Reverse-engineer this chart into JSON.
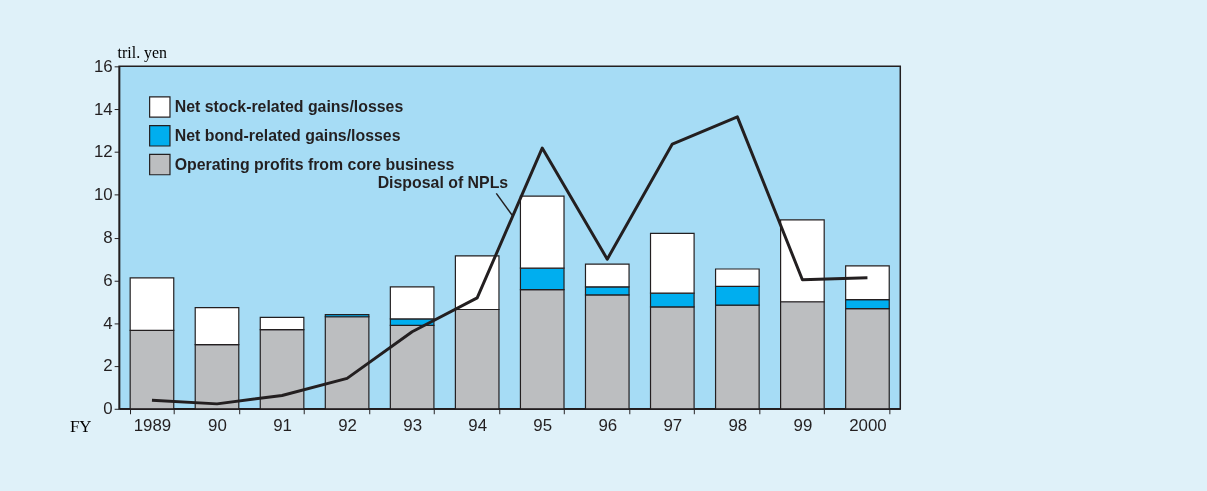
{
  "chart_data": {
    "type": "bar",
    "stacked": true,
    "ylabel": "tril. yen",
    "xlabel": "FY",
    "categories": [
      "1989",
      "90",
      "91",
      "92",
      "93",
      "94",
      "95",
      "96",
      "97",
      "98",
      "99",
      "2000"
    ],
    "ylim": [
      0,
      16
    ],
    "yticks": [
      0,
      2,
      4,
      6,
      8,
      10,
      12,
      14,
      16
    ],
    "grid": false,
    "legend": "top left",
    "series": [
      {
        "name": "Operating profits from core business",
        "color": "#bcbec0",
        "values": [
          3.66,
          3.0,
          3.7,
          4.3,
          3.9,
          4.64,
          5.57,
          5.32,
          4.76,
          4.84,
          5.0,
          4.68
        ]
      },
      {
        "name": "Net bond-related gains/losses",
        "color": "#00aeef",
        "values": [
          null,
          null,
          null,
          0.1,
          0.3,
          null,
          1.0,
          0.38,
          0.64,
          0.88,
          null,
          0.42
        ]
      },
      {
        "name": "Net stock-related gains/losses",
        "color": "#ffffff",
        "values": [
          2.46,
          1.73,
          0.57,
          null,
          1.5,
          2.5,
          3.37,
          1.06,
          2.8,
          0.81,
          3.83,
          1.58
        ]
      },
      {
        "name": "Disposal of NPLs",
        "type": "line",
        "color": "#231f20",
        "values": [
          0.4,
          0.23,
          0.62,
          1.42,
          3.6,
          5.18,
          12.18,
          6.99,
          12.37,
          13.64,
          6.03,
          6.12
        ]
      }
    ]
  }
}
